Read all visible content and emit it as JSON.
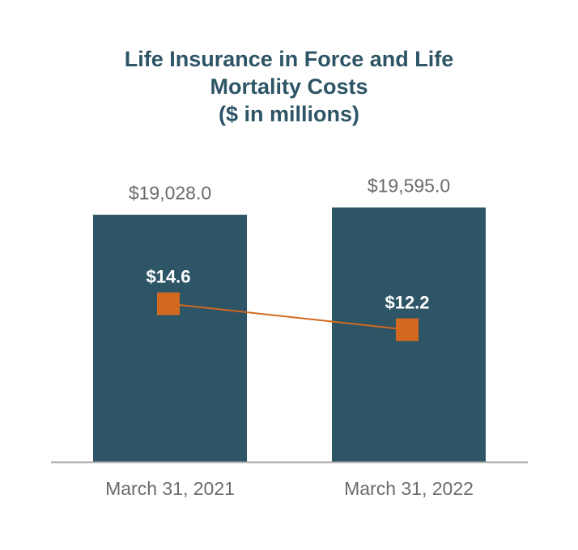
{
  "chart_data": {
    "type": "bar",
    "title_lines": [
      "Life Insurance in Force and Life",
      "Mortality Costs",
      "($ in millions)"
    ],
    "categories": [
      "March 31, 2021",
      "March 31, 2022"
    ],
    "series": [
      {
        "type": "bar",
        "values": [
          19028.0,
          19595.0
        ],
        "labels": [
          "$19,028.0",
          "$19,595.0"
        ],
        "color": "#2e5566"
      },
      {
        "type": "line",
        "marker": "square",
        "values": [
          14.6,
          12.2
        ],
        "labels": [
          "$14.6",
          "$12.2"
        ],
        "color": "#d2691e"
      }
    ],
    "bar_axis_range": [
      0,
      20500
    ],
    "line_axis_range": [
      0,
      18
    ],
    "grid": false,
    "legend": "none",
    "axis_color": "#a6a6a6"
  }
}
